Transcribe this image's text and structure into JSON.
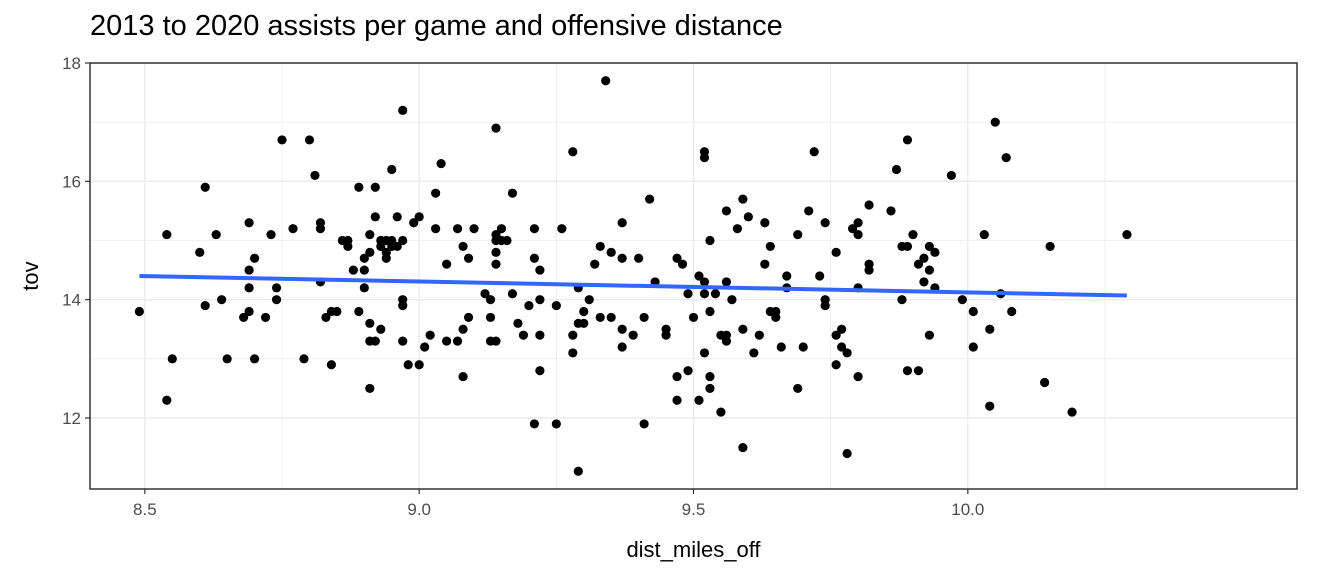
{
  "chart_data": {
    "type": "scatter",
    "title": "2013 to 2020 assists per game and offensive distance",
    "xlabel": "dist_miles_off",
    "ylabel": "tov",
    "xlim": [
      8.4,
      10.6
    ],
    "ylim": [
      10.8,
      18.0
    ],
    "x_ticks": [
      8.5,
      9.0,
      9.5,
      10.0
    ],
    "x_tick_labels": [
      "8.5",
      "9.0",
      "9.5",
      "10.0"
    ],
    "y_ticks": [
      12,
      14,
      16,
      18
    ],
    "y_tick_labels": [
      "12",
      "14",
      "16",
      "18"
    ],
    "grid": true,
    "points": [
      [
        8.49,
        13.8
      ],
      [
        8.54,
        15.1
      ],
      [
        8.54,
        12.3
      ],
      [
        8.55,
        13.0
      ],
      [
        8.6,
        14.8
      ],
      [
        8.61,
        15.9
      ],
      [
        8.61,
        13.9
      ],
      [
        8.63,
        15.1
      ],
      [
        8.64,
        14.0
      ],
      [
        8.65,
        13.0
      ],
      [
        8.68,
        13.7
      ],
      [
        8.69,
        15.3
      ],
      [
        8.69,
        14.5
      ],
      [
        8.69,
        14.2
      ],
      [
        8.69,
        13.8
      ],
      [
        8.7,
        14.7
      ],
      [
        8.7,
        13.0
      ],
      [
        8.72,
        13.7
      ],
      [
        8.73,
        15.1
      ],
      [
        8.74,
        14.2
      ],
      [
        8.74,
        14.0
      ],
      [
        8.75,
        16.7
      ],
      [
        8.77,
        15.2
      ],
      [
        8.79,
        13.0
      ],
      [
        8.8,
        16.7
      ],
      [
        8.81,
        16.1
      ],
      [
        8.82,
        15.3
      ],
      [
        8.82,
        15.2
      ],
      [
        8.82,
        14.3
      ],
      [
        8.83,
        13.7
      ],
      [
        8.84,
        13.8
      ],
      [
        8.84,
        12.9
      ],
      [
        8.85,
        13.8
      ],
      [
        8.86,
        15.0
      ],
      [
        8.87,
        15.0
      ],
      [
        8.87,
        14.9
      ],
      [
        8.88,
        14.5
      ],
      [
        8.89,
        15.9
      ],
      [
        8.89,
        13.8
      ],
      [
        8.9,
        14.5
      ],
      [
        8.9,
        14.2
      ],
      [
        8.9,
        14.7
      ],
      [
        8.91,
        15.1
      ],
      [
        8.91,
        14.8
      ],
      [
        8.91,
        13.6
      ],
      [
        8.91,
        13.3
      ],
      [
        8.91,
        12.5
      ],
      [
        8.92,
        15.9
      ],
      [
        8.92,
        15.4
      ],
      [
        8.92,
        13.3
      ],
      [
        8.93,
        15.0
      ],
      [
        8.93,
        14.9
      ],
      [
        8.93,
        13.5
      ],
      [
        8.94,
        15.0
      ],
      [
        8.94,
        14.8
      ],
      [
        8.94,
        14.7
      ],
      [
        8.95,
        16.2
      ],
      [
        8.95,
        15.0
      ],
      [
        8.95,
        14.9
      ],
      [
        8.96,
        15.4
      ],
      [
        8.96,
        14.9
      ],
      [
        8.97,
        17.2
      ],
      [
        8.97,
        15.0
      ],
      [
        8.97,
        14.0
      ],
      [
        8.97,
        13.9
      ],
      [
        8.97,
        13.3
      ],
      [
        8.98,
        12.9
      ],
      [
        8.99,
        15.3
      ],
      [
        9.0,
        15.4
      ],
      [
        9.0,
        12.9
      ],
      [
        9.01,
        13.2
      ],
      [
        9.02,
        13.4
      ],
      [
        9.03,
        15.8
      ],
      [
        9.03,
        15.2
      ],
      [
        9.04,
        16.3
      ],
      [
        9.05,
        14.6
      ],
      [
        9.05,
        13.3
      ],
      [
        9.07,
        15.2
      ],
      [
        9.07,
        13.3
      ],
      [
        9.08,
        14.9
      ],
      [
        9.08,
        13.5
      ],
      [
        9.08,
        12.7
      ],
      [
        9.09,
        14.7
      ],
      [
        9.09,
        13.7
      ],
      [
        9.1,
        15.2
      ],
      [
        9.12,
        14.1
      ],
      [
        9.13,
        14.0
      ],
      [
        9.13,
        13.7
      ],
      [
        9.13,
        13.3
      ],
      [
        9.14,
        16.9
      ],
      [
        9.14,
        15.1
      ],
      [
        9.14,
        15.0
      ],
      [
        9.14,
        14.8
      ],
      [
        9.14,
        14.6
      ],
      [
        9.14,
        13.3
      ],
      [
        9.15,
        15.2
      ],
      [
        9.15,
        15.0
      ],
      [
        9.16,
        15.0
      ],
      [
        9.17,
        15.8
      ],
      [
        9.17,
        14.1
      ],
      [
        9.18,
        13.6
      ],
      [
        9.19,
        13.4
      ],
      [
        9.2,
        13.9
      ],
      [
        9.21,
        15.2
      ],
      [
        9.21,
        14.7
      ],
      [
        9.21,
        11.9
      ],
      [
        9.22,
        14.5
      ],
      [
        9.22,
        14.0
      ],
      [
        9.22,
        13.4
      ],
      [
        9.22,
        12.8
      ],
      [
        9.25,
        11.9
      ],
      [
        9.25,
        13.9
      ],
      [
        9.26,
        15.2
      ],
      [
        9.28,
        16.5
      ],
      [
        9.28,
        13.4
      ],
      [
        9.28,
        13.1
      ],
      [
        9.29,
        14.2
      ],
      [
        9.29,
        13.6
      ],
      [
        9.29,
        11.1
      ],
      [
        9.3,
        13.8
      ],
      [
        9.3,
        13.6
      ],
      [
        9.31,
        14.0
      ],
      [
        9.32,
        14.6
      ],
      [
        9.33,
        14.9
      ],
      [
        9.33,
        13.7
      ],
      [
        9.34,
        17.7
      ],
      [
        9.35,
        14.8
      ],
      [
        9.35,
        13.7
      ],
      [
        9.37,
        15.3
      ],
      [
        9.37,
        14.7
      ],
      [
        9.37,
        13.5
      ],
      [
        9.37,
        13.2
      ],
      [
        9.39,
        13.4
      ],
      [
        9.4,
        14.7
      ],
      [
        9.41,
        13.7
      ],
      [
        9.41,
        11.9
      ],
      [
        9.42,
        15.7
      ],
      [
        9.43,
        14.3
      ],
      [
        9.45,
        13.5
      ],
      [
        9.45,
        13.4
      ],
      [
        9.47,
        14.7
      ],
      [
        9.47,
        12.7
      ],
      [
        9.47,
        12.3
      ],
      [
        9.48,
        14.6
      ],
      [
        9.49,
        14.1
      ],
      [
        9.49,
        12.8
      ],
      [
        9.5,
        13.7
      ],
      [
        9.51,
        14.4
      ],
      [
        9.51,
        12.3
      ],
      [
        9.52,
        16.5
      ],
      [
        9.52,
        16.4
      ],
      [
        9.52,
        14.3
      ],
      [
        9.52,
        14.1
      ],
      [
        9.52,
        13.1
      ],
      [
        9.53,
        15.0
      ],
      [
        9.53,
        13.8
      ],
      [
        9.53,
        12.7
      ],
      [
        9.53,
        12.5
      ],
      [
        9.54,
        14.1
      ],
      [
        9.55,
        13.4
      ],
      [
        9.55,
        12.1
      ],
      [
        9.56,
        15.5
      ],
      [
        9.56,
        14.3
      ],
      [
        9.56,
        13.4
      ],
      [
        9.56,
        13.3
      ],
      [
        9.57,
        14.0
      ],
      [
        9.58,
        15.2
      ],
      [
        9.59,
        15.7
      ],
      [
        9.59,
        13.5
      ],
      [
        9.59,
        11.5
      ],
      [
        9.6,
        15.4
      ],
      [
        9.61,
        13.1
      ],
      [
        9.62,
        13.4
      ],
      [
        9.63,
        15.3
      ],
      [
        9.63,
        14.6
      ],
      [
        9.64,
        14.9
      ],
      [
        9.64,
        13.8
      ],
      [
        9.65,
        13.8
      ],
      [
        9.65,
        13.7
      ],
      [
        9.66,
        13.2
      ],
      [
        9.67,
        14.4
      ],
      [
        9.67,
        14.2
      ],
      [
        9.69,
        15.1
      ],
      [
        9.69,
        12.5
      ],
      [
        9.7,
        13.2
      ],
      [
        9.71,
        15.5
      ],
      [
        9.72,
        16.5
      ],
      [
        9.73,
        14.4
      ],
      [
        9.74,
        15.3
      ],
      [
        9.74,
        14.0
      ],
      [
        9.74,
        13.9
      ],
      [
        9.76,
        14.8
      ],
      [
        9.76,
        13.4
      ],
      [
        9.76,
        12.9
      ],
      [
        9.77,
        13.5
      ],
      [
        9.77,
        13.2
      ],
      [
        9.78,
        13.1
      ],
      [
        9.78,
        11.4
      ],
      [
        9.79,
        15.2
      ],
      [
        9.8,
        15.3
      ],
      [
        9.8,
        15.1
      ],
      [
        9.8,
        14.2
      ],
      [
        9.8,
        12.7
      ],
      [
        9.82,
        15.6
      ],
      [
        9.82,
        14.6
      ],
      [
        9.82,
        14.5
      ],
      [
        9.86,
        15.5
      ],
      [
        9.87,
        16.2
      ],
      [
        9.88,
        14.9
      ],
      [
        9.88,
        14.0
      ],
      [
        9.89,
        16.7
      ],
      [
        9.89,
        14.9
      ],
      [
        9.89,
        12.8
      ],
      [
        9.9,
        15.1
      ],
      [
        9.91,
        14.6
      ],
      [
        9.91,
        12.8
      ],
      [
        9.92,
        14.7
      ],
      [
        9.92,
        14.3
      ],
      [
        9.93,
        14.9
      ],
      [
        9.93,
        14.5
      ],
      [
        9.93,
        13.4
      ],
      [
        9.94,
        14.8
      ],
      [
        9.94,
        14.2
      ],
      [
        9.97,
        16.1
      ],
      [
        9.99,
        14.0
      ],
      [
        10.01,
        13.8
      ],
      [
        10.01,
        13.2
      ],
      [
        10.03,
        15.1
      ],
      [
        10.04,
        13.5
      ],
      [
        10.04,
        12.2
      ],
      [
        10.05,
        17.0
      ],
      [
        10.06,
        14.1
      ],
      [
        10.07,
        16.4
      ],
      [
        10.08,
        13.8
      ],
      [
        10.14,
        12.6
      ],
      [
        10.15,
        14.9
      ],
      [
        10.19,
        12.1
      ],
      [
        10.29,
        15.1
      ]
    ],
    "trend_line": {
      "x": [
        8.49,
        10.29
      ],
      "y": [
        14.4,
        14.07
      ],
      "color": "#3366FF"
    },
    "point_color": "#000000",
    "grid_color": "#ebebeb",
    "axis_color": "#333333"
  }
}
